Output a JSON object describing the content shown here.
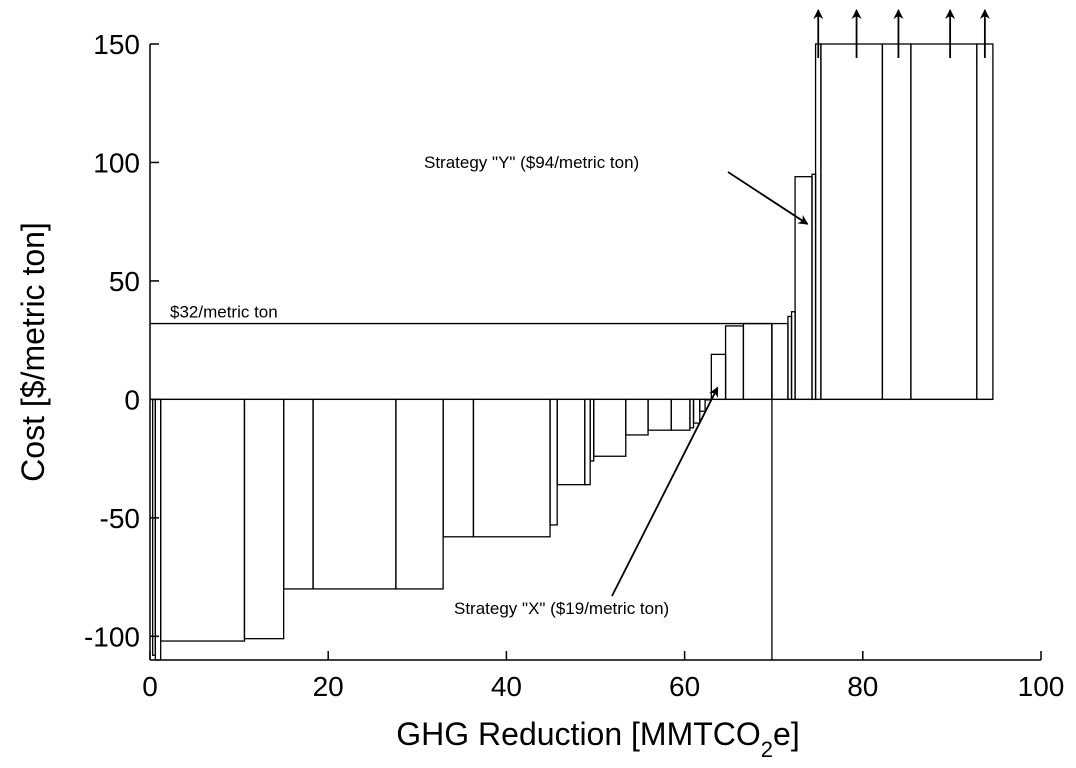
{
  "chart_data": {
    "type": "bar",
    "subtype": "marginal-abatement-cost-curve",
    "xlabel_main": "GHG Reduction [MMTCO",
    "xlabel_sub": "2",
    "xlabel_end": "e]",
    "ylabel": "Cost [$/metric ton]",
    "xlim": [
      0,
      100
    ],
    "ylim": [
      -110,
      150
    ],
    "x_ticks": [
      0,
      20,
      40,
      60,
      80,
      100
    ],
    "y_ticks": [
      -100,
      -50,
      0,
      50,
      100,
      150
    ],
    "grid": false,
    "bars": [
      {
        "x0": 0.3,
        "x1": 0.6,
        "cost": -108
      },
      {
        "x0": 0.6,
        "x1": 1.2,
        "cost": -110
      },
      {
        "x0": 1.2,
        "x1": 10.6,
        "cost": -102
      },
      {
        "x0": 10.6,
        "x1": 15.0,
        "cost": -101
      },
      {
        "x0": 15.0,
        "x1": 18.3,
        "cost": -80
      },
      {
        "x0": 18.3,
        "x1": 27.6,
        "cost": -80
      },
      {
        "x0": 27.6,
        "x1": 32.9,
        "cost": -80
      },
      {
        "x0": 32.9,
        "x1": 36.3,
        "cost": -58
      },
      {
        "x0": 36.3,
        "x1": 44.9,
        "cost": -58
      },
      {
        "x0": 44.9,
        "x1": 45.7,
        "cost": -53
      },
      {
        "x0": 45.7,
        "x1": 48.8,
        "cost": -36
      },
      {
        "x0": 48.8,
        "x1": 49.4,
        "cost": -36
      },
      {
        "x0": 49.4,
        "x1": 49.8,
        "cost": -26
      },
      {
        "x0": 49.8,
        "x1": 53.4,
        "cost": -24
      },
      {
        "x0": 53.4,
        "x1": 55.9,
        "cost": -15
      },
      {
        "x0": 55.9,
        "x1": 58.5,
        "cost": -13
      },
      {
        "x0": 58.5,
        "x1": 60.6,
        "cost": -13
      },
      {
        "x0": 60.6,
        "x1": 61.0,
        "cost": -12
      },
      {
        "x0": 61.0,
        "x1": 61.7,
        "cost": -10
      },
      {
        "x0": 61.7,
        "x1": 62.3,
        "cost": -5
      },
      {
        "x0": 62.3,
        "x1": 63.0,
        "cost": 0
      },
      {
        "x0": 63.0,
        "x1": 64.6,
        "cost": 19
      },
      {
        "x0": 64.6,
        "x1": 66.6,
        "cost": 31
      },
      {
        "x0": 66.6,
        "x1": 69.8,
        "cost": 32
      },
      {
        "x0": 69.8,
        "x1": 71.6,
        "cost": 32
      },
      {
        "x0": 71.6,
        "x1": 72.0,
        "cost": 35
      },
      {
        "x0": 72.0,
        "x1": 72.4,
        "cost": 37
      },
      {
        "x0": 72.4,
        "x1": 74.3,
        "cost": 94
      },
      {
        "x0": 74.3,
        "x1": 74.7,
        "cost": 95
      },
      {
        "x0": 74.7,
        "x1": 75.3,
        "cost": 150,
        "clipped": true
      },
      {
        "x0": 75.3,
        "x1": 82.2,
        "cost": 150,
        "clipped": true
      },
      {
        "x0": 82.2,
        "x1": 85.4,
        "cost": 150,
        "clipped": true
      },
      {
        "x0": 85.4,
        "x1": 92.8,
        "cost": 150,
        "clipped": true
      },
      {
        "x0": 92.8,
        "x1": 94.6,
        "cost": 150,
        "clipped": true
      }
    ],
    "offscale_arrows_x": [
      75.0,
      79.3,
      84.0,
      89.8,
      93.7
    ],
    "reference_line": {
      "value": 32,
      "x_end": 69.8,
      "label": "$32/metric ton"
    },
    "annotations": [
      {
        "text": "Strategy \"Y\" ($94/metric ton)",
        "target": [
          73.8,
          74
        ]
      },
      {
        "text": "Strategy \"X\" ($19/metric ton)",
        "target": [
          63.7,
          5
        ]
      }
    ]
  }
}
